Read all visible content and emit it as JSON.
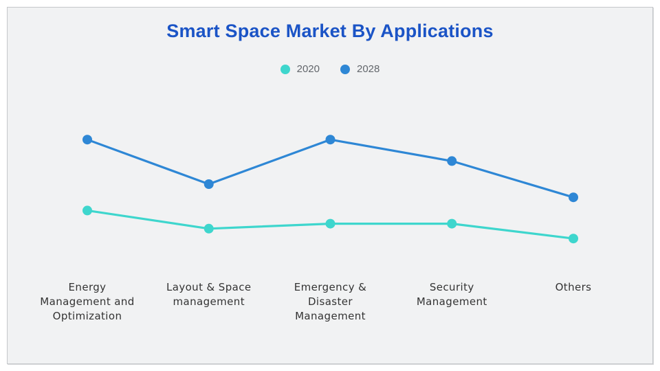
{
  "page": {
    "background_color": "#ffffff",
    "panel_background_color": "#f1f2f3",
    "panel_border_color": "#c4c7ca"
  },
  "chart_data": {
    "type": "line",
    "title": "Smart Space Market By Applications",
    "title_color": "#1b54c6",
    "xlabel": "",
    "ylabel": "",
    "ylim": [
      0,
      100
    ],
    "grid": false,
    "axes_visible": false,
    "legend_position": "top-center",
    "axis_label_color": "#333333",
    "legend_text_color": "#62666b",
    "categories": [
      "Energy\nManagement and\nOptimization",
      "Layout & Space\nmanagement",
      "Emergency &\nDisaster\nManagement",
      "Security\nManagement",
      "Others"
    ],
    "series": [
      {
        "name": "2020",
        "color": "#3ed6cd",
        "values": [
          39,
          28,
          31,
          31,
          22
        ]
      },
      {
        "name": "2028",
        "color": "#2e87d5",
        "values": [
          82,
          55,
          82,
          69,
          47
        ]
      }
    ]
  }
}
